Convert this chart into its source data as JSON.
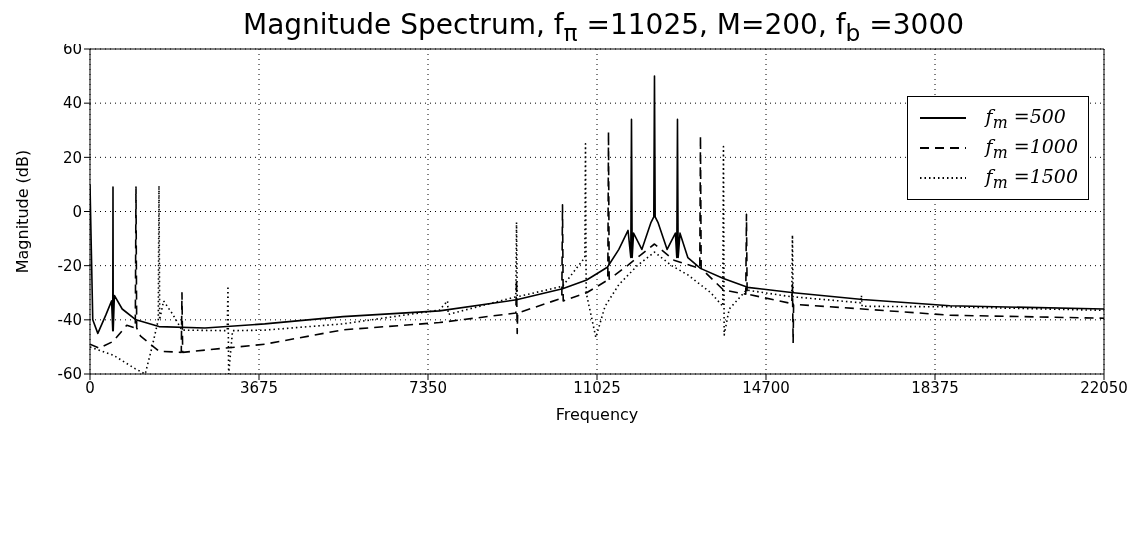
{
  "chart_data": {
    "type": "line",
    "title": "Magnitude Spectrum, f$_{π}$ =11025, M=200, f$_{b}$ =3000",
    "xlabel": "Frequency",
    "ylabel": "Magnitude (dB)",
    "xlim": [
      0,
      22050
    ],
    "xticks": [
      0,
      3675,
      7350,
      11025,
      14700,
      18375,
      22050
    ],
    "ylim": [
      -60,
      60
    ],
    "yticks": [
      -60,
      -40,
      -20,
      0,
      20,
      40,
      60
    ],
    "grid": true,
    "legend": "top right",
    "marker": "none",
    "series": [
      {
        "name": "f$_{m}$ =500",
        "color": "#000000",
        "line_style": "solid",
        "x": [
          0,
          60,
          170,
          350,
          470,
          495,
          500,
          505,
          530,
          700,
          1000,
          1500,
          2500,
          3800,
          5500,
          7600,
          9275,
          10275,
          10800,
          11250,
          11500,
          11700,
          11760,
          11775,
          11790,
          11820,
          12000,
          12200,
          12260,
          12275,
          12290,
          12350,
          12550,
          12730,
          12760,
          12775,
          12790,
          12830,
          13000,
          13275,
          13775,
          14300,
          15300,
          16800,
          18700,
          22050
        ],
        "values": [
          10,
          -40,
          -45,
          -38,
          -33,
          -44,
          9,
          -44,
          -31,
          -36,
          -40,
          -42.5,
          -43,
          -41.5,
          -38.8,
          -36.7,
          -32.6,
          -28.5,
          -25.3,
          -20.6,
          -14,
          -7,
          -17,
          34,
          -17,
          -8,
          -14,
          -4,
          -2,
          50,
          -2,
          -4,
          -14,
          -8,
          -17,
          34,
          -17,
          -8,
          -17,
          -21,
          -24.7,
          -28,
          -30,
          -32.5,
          -34.8,
          -36
        ]
      },
      {
        "name": "f$_{m}$ =1000",
        "color": "#000000",
        "line_style": "dashed",
        "x": [
          0,
          200,
          500,
          800,
          985,
          1000,
          1015,
          1100,
          1500,
          1985,
          2000,
          2015,
          3800,
          5500,
          7600,
          9260,
          9275,
          9290,
          9300,
          10260,
          10275,
          10290,
          10800,
          11260,
          11275,
          11290,
          11700,
          12275,
          12700,
          13260,
          13275,
          13290,
          13775,
          14260,
          14275,
          14290,
          15260,
          15275,
          15290,
          15300,
          16800,
          18700,
          22050
        ],
        "values": [
          -49,
          -50.5,
          -48,
          -42,
          -43,
          9,
          -43,
          -46,
          -51.6,
          -52,
          -30,
          -52,
          -49,
          -43.7,
          -41,
          -37.5,
          -25,
          -45,
          -37.5,
          -32,
          2.5,
          -33,
          -30,
          -25.3,
          29.6,
          -25,
          -19.8,
          -12,
          -18,
          -21,
          28,
          -21,
          -29,
          -30.5,
          -1,
          -30.5,
          -34,
          -27,
          -48.6,
          -34.3,
          -36,
          -38.3,
          -39.4
        ]
      },
      {
        "name": "f$_{m}$ =1500",
        "color": "#000000",
        "line_style": "dotted",
        "x": [
          0,
          500,
          980,
          1200,
          1350,
          1485,
          1500,
          1515,
          1600,
          1800,
          2000,
          2985,
          3000,
          3015,
          3100,
          3800,
          5500,
          7600,
          7775,
          7790,
          9260,
          9275,
          9290,
          10275,
          10760,
          10775,
          10790,
          11000,
          11200,
          11500,
          11900,
          12275,
          12650,
          13000,
          13500,
          13760,
          13775,
          13790,
          13900,
          14275,
          15260,
          15275,
          15290,
          16760,
          16775,
          16790,
          18700,
          22050
        ],
        "values": [
          -50,
          -53,
          -58,
          -60,
          -50,
          -40,
          9.5,
          -40,
          -33,
          -38,
          -43.8,
          -44,
          -27.5,
          -60,
          -44,
          -43.8,
          -41.5,
          -36.4,
          -33,
          -38,
          -31.5,
          -4,
          -31.5,
          -27.6,
          -17,
          25,
          -30,
          -46.5,
          -35,
          -27,
          -20,
          -15,
          -20,
          -23.4,
          -30,
          -35,
          24,
          -45.6,
          -36,
          -29,
          -31.5,
          -8.7,
          -31.5,
          -33.7,
          -31,
          -35,
          -35.2,
          -36.5
        ]
      }
    ]
  }
}
